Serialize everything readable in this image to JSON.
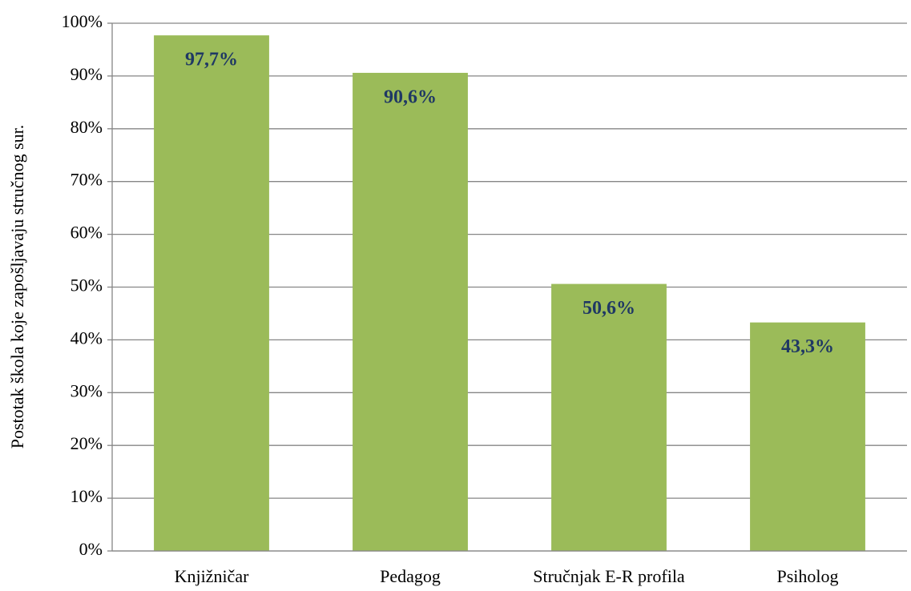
{
  "chart_data": {
    "type": "bar",
    "y_label": "Postotak škola koje zapošljavaju stručnog sur.",
    "categories": [
      "Knjižničar",
      "Pedagog",
      "Stručnjak E-R profila",
      "Psiholog"
    ],
    "values": [
      97.7,
      90.6,
      50.6,
      43.3
    ],
    "value_labels": [
      "97,7%",
      "90,6%",
      "50,6%",
      "43,3%"
    ],
    "color": "#9bbb59",
    "ylim": [
      0,
      100
    ],
    "yticks": [
      {
        "value": 0,
        "label": "0%"
      },
      {
        "value": 10,
        "label": "10%"
      },
      {
        "value": 20,
        "label": "20%"
      },
      {
        "value": 30,
        "label": "30%"
      },
      {
        "value": 40,
        "label": "40%"
      },
      {
        "value": 50,
        "label": "50%"
      },
      {
        "value": 60,
        "label": "60%"
      },
      {
        "value": 70,
        "label": "70%"
      },
      {
        "value": 80,
        "label": "80%"
      },
      {
        "value": 90,
        "label": "90%"
      },
      {
        "value": 100,
        "label": "100%"
      }
    ],
    "grid": true
  }
}
